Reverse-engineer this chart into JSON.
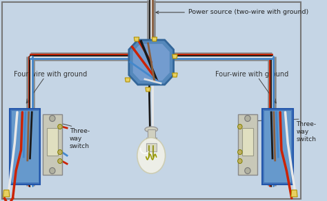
{
  "bg_color": "#c5d5e5",
  "border_color": "#888888",
  "labels": {
    "power_source": "Power source (two-wire with ground)",
    "four_wire_left": "Four-wire with ground",
    "four_wire_right": "Four-wire with ground",
    "three_way_left": "Three-\nway\nswitch",
    "three_way_right": "Three-\nway\nswitch"
  },
  "colors": {
    "red_wire": "#cc2200",
    "black_wire": "#1a1a1a",
    "white_wire": "#e8e8e8",
    "blue_wire": "#4488cc",
    "brown_wire": "#8B6040",
    "gray_conduit": "#a0a0a0",
    "gray_conduit_dark": "#888888",
    "junction_box": "#5588bb",
    "junction_box_light": "#88aadd",
    "switch_box": "#4477bb",
    "switch_box_light": "#6699cc",
    "switch_body": "#d0d0c0",
    "switch_toggle": "#e8e8d0",
    "wire_nut": "#e8d060",
    "lamp_body": "#f0f0e0",
    "lamp_base": "#d8d8c0",
    "lamp_socket": "#e0e0d0"
  }
}
